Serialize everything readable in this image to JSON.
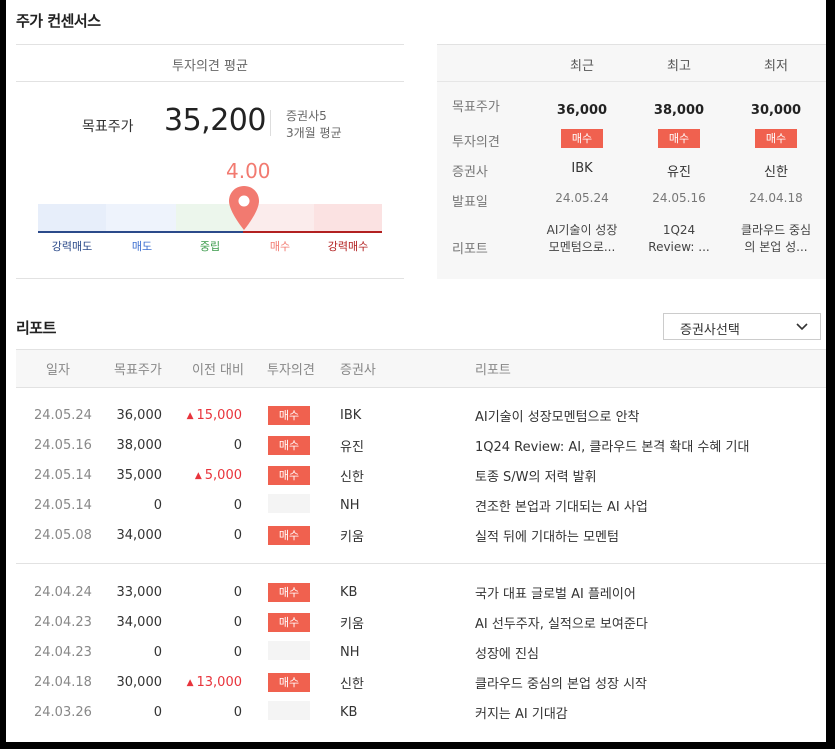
{
  "section_title": "주가 컨센서스",
  "avg_header": "투자의견 평균",
  "target_label": "목표주가",
  "target_price": "35,200",
  "broker_count": "증권사5",
  "avg_period": "3개월 평균",
  "opinion_score": "4.00",
  "opinion_level": 0.6,
  "scale_labels": [
    "강력매도",
    "매도",
    "중립",
    "매수",
    "강력매수"
  ],
  "scale_colors": [
    "#e7eefa",
    "#eef3fc",
    "#ecf6ec",
    "#fbecec",
    "#fbe2e2"
  ],
  "right_panel": {
    "columns": [
      "최근",
      "최고",
      "최저"
    ],
    "row_labels": [
      "목표주가",
      "투자의견",
      "증권사",
      "발표일",
      "리포트"
    ],
    "cells": [
      {
        "price": "36,000",
        "opinion": "매수",
        "broker": "IBK",
        "date": "24.05.24",
        "report": "AI기술이 성장모멘텀으로..."
      },
      {
        "price": "38,000",
        "opinion": "매수",
        "broker": "유진",
        "date": "24.05.16",
        "report": "1Q24 Review: ..."
      },
      {
        "price": "30,000",
        "opinion": "매수",
        "broker": "신한",
        "date": "24.04.18",
        "report": "클라우드 중심의 본업 성..."
      }
    ]
  },
  "reports": {
    "title": "리포트",
    "select_label": "증권사선택",
    "headers": [
      "일자",
      "목표주가",
      "이전 대비",
      "투자의견",
      "증권사",
      "리포트"
    ],
    "rows": [
      {
        "date": "24.05.24",
        "price": "36,000",
        "change": "15,000",
        "up": true,
        "opinion": "매수",
        "broker": "IBK",
        "title": "AI기술이 성장모멘텀으로 안착"
      },
      {
        "date": "24.05.16",
        "price": "38,000",
        "change": "0",
        "up": false,
        "opinion": "매수",
        "broker": "유진",
        "title": "1Q24 Review: AI, 클라우드 본격 확대 수혜 기대"
      },
      {
        "date": "24.05.14",
        "price": "35,000",
        "change": "5,000",
        "up": true,
        "opinion": "매수",
        "broker": "신한",
        "title": "토종 S/W의 저력 발휘"
      },
      {
        "date": "24.05.14",
        "price": "0",
        "change": "0",
        "up": false,
        "opinion": "",
        "broker": "NH",
        "title": "견조한 본업과 기대되는 AI 사업"
      },
      {
        "date": "24.05.08",
        "price": "34,000",
        "change": "0",
        "up": false,
        "opinion": "매수",
        "broker": "키움",
        "title": "실적 뒤에 기대하는 모멘텀"
      },
      {
        "date": "24.04.24",
        "price": "33,000",
        "change": "0",
        "up": false,
        "opinion": "매수",
        "broker": "KB",
        "title": "국가 대표 글로벌 AI 플레이어"
      },
      {
        "date": "24.04.23",
        "price": "34,000",
        "change": "0",
        "up": false,
        "opinion": "매수",
        "broker": "키움",
        "title": "AI 선두주자, 실적으로 보여준다"
      },
      {
        "date": "24.04.23",
        "price": "0",
        "change": "0",
        "up": false,
        "opinion": "",
        "broker": "NH",
        "title": "성장에 진심"
      },
      {
        "date": "24.04.18",
        "price": "30,000",
        "change": "13,000",
        "up": true,
        "opinion": "매수",
        "broker": "신한",
        "title": "클라우드 중심의 본업 성장 시작"
      },
      {
        "date": "24.03.26",
        "price": "0",
        "change": "0",
        "up": false,
        "opinion": "",
        "broker": "KB",
        "title": "커지는 AI 기대감"
      }
    ]
  },
  "colors": {
    "accent_red": "#f0614f",
    "up_red": "#e8343c",
    "pin": "#f27a70"
  }
}
